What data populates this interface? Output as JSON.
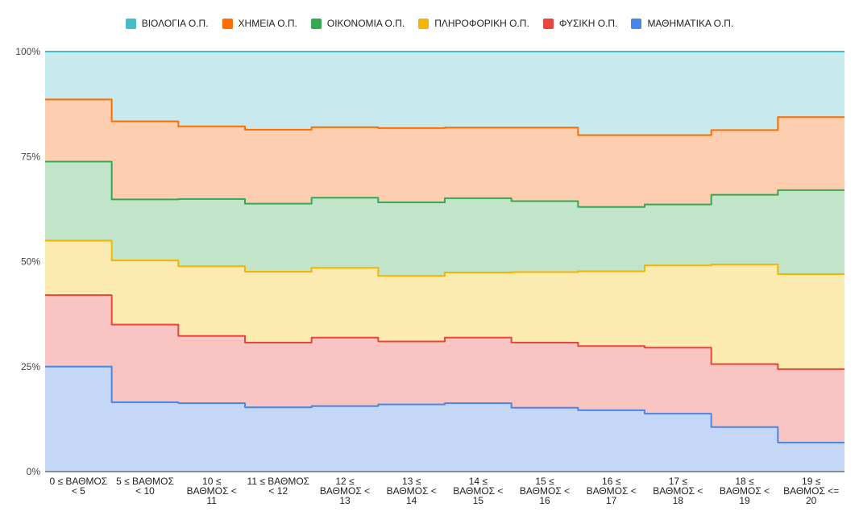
{
  "chart_data": {
    "type": "area",
    "stacking": "percent",
    "interpolation": "step",
    "categories": [
      [
        "0 ≤ ΒΑΘΜΟΣ",
        "< 5"
      ],
      [
        "5 ≤ ΒΑΘΜΟΣ",
        "< 10"
      ],
      [
        "10 ≤",
        "ΒΑΘΜΟΣ <",
        "11"
      ],
      [
        "11 ≤ ΒΑΘΜΟΣ",
        "< 12"
      ],
      [
        "12 ≤",
        "ΒΑΘΜΟΣ <",
        "13"
      ],
      [
        "13 ≤",
        "ΒΑΘΜΟΣ <",
        "14"
      ],
      [
        "14 ≤",
        "ΒΑΘΜΟΣ <",
        "15"
      ],
      [
        "15 ≤",
        "ΒΑΘΜΟΣ <",
        "16"
      ],
      [
        "16 ≤",
        "ΒΑΘΜΟΣ <",
        "17"
      ],
      [
        "17 ≤",
        "ΒΑΘΜΟΣ <",
        "18"
      ],
      [
        "18 ≤",
        "ΒΑΘΜΟΣ <",
        "19"
      ],
      [
        "19 ≤",
        "ΒΑΘΜΟΣ <=",
        "20"
      ]
    ],
    "series": [
      {
        "name": "ΜΑΘΗΜΑΤΙΚΑ Ο.Π.",
        "color": "#4a86e8",
        "fill": "#c5d7f6",
        "values": [
          25.0,
          16.5,
          16.3,
          15.3,
          15.6,
          16.0,
          16.3,
          15.2,
          14.6,
          13.8,
          10.6,
          6.9
        ]
      },
      {
        "name": "ΦΥΣΙΚΗ Ο.Π.",
        "color": "#e8453c",
        "fill": "#f8c5c3",
        "values": [
          17.0,
          18.5,
          16.0,
          15.4,
          16.3,
          15.0,
          15.6,
          15.5,
          15.3,
          15.7,
          15.0,
          17.5
        ]
      },
      {
        "name": "ΠΛΗΡΟΦΟΡΙΚΗ Ο.Π.",
        "color": "#f4b400",
        "fill": "#fcebb0",
        "values": [
          13.0,
          15.3,
          16.6,
          16.9,
          16.6,
          15.6,
          15.5,
          16.8,
          17.8,
          19.6,
          23.7,
          22.6
        ]
      },
      {
        "name": "ΟΙΚΟΝΟΜΙΑ Ο.Π.",
        "color": "#34a853",
        "fill": "#c2e4c9",
        "values": [
          18.8,
          14.5,
          16.0,
          16.2,
          16.7,
          17.5,
          17.7,
          16.9,
          15.3,
          14.5,
          16.6,
          20.0
        ]
      },
      {
        "name": "ΧΗΜΕΙΑ Ο.Π.",
        "color": "#ff6d00",
        "fill": "#fdcfb0",
        "values": [
          14.8,
          18.6,
          17.3,
          17.6,
          16.8,
          17.7,
          16.8,
          17.5,
          17.1,
          16.5,
          15.4,
          17.4
        ]
      },
      {
        "name": "ΒΙΟΛΟΓΙΑ Ο.Π.",
        "color": "#46bdc6",
        "fill": "#c8eaef",
        "values": [
          11.4,
          16.6,
          17.8,
          18.6,
          18.0,
          18.2,
          18.1,
          18.1,
          19.9,
          19.9,
          18.7,
          15.6
        ]
      }
    ],
    "legend_order": [
      "ΒΙΟΛΟΓΙΑ Ο.Π.",
      "ΧΗΜΕΙΑ Ο.Π.",
      "ΟΙΚΟΝΟΜΙΑ Ο.Π.",
      "ΠΛΗΡΟΦΟΡΙΚΗ Ο.Π.",
      "ΦΥΣΙΚΗ Ο.Π.",
      "ΜΑΘΗΜΑΤΙΚΑ Ο.Π."
    ],
    "legend_position": "top",
    "yticks": [
      "0%",
      "25%",
      "50%",
      "75%",
      "100%"
    ],
    "ylim": [
      0,
      100
    ],
    "grid": true
  }
}
